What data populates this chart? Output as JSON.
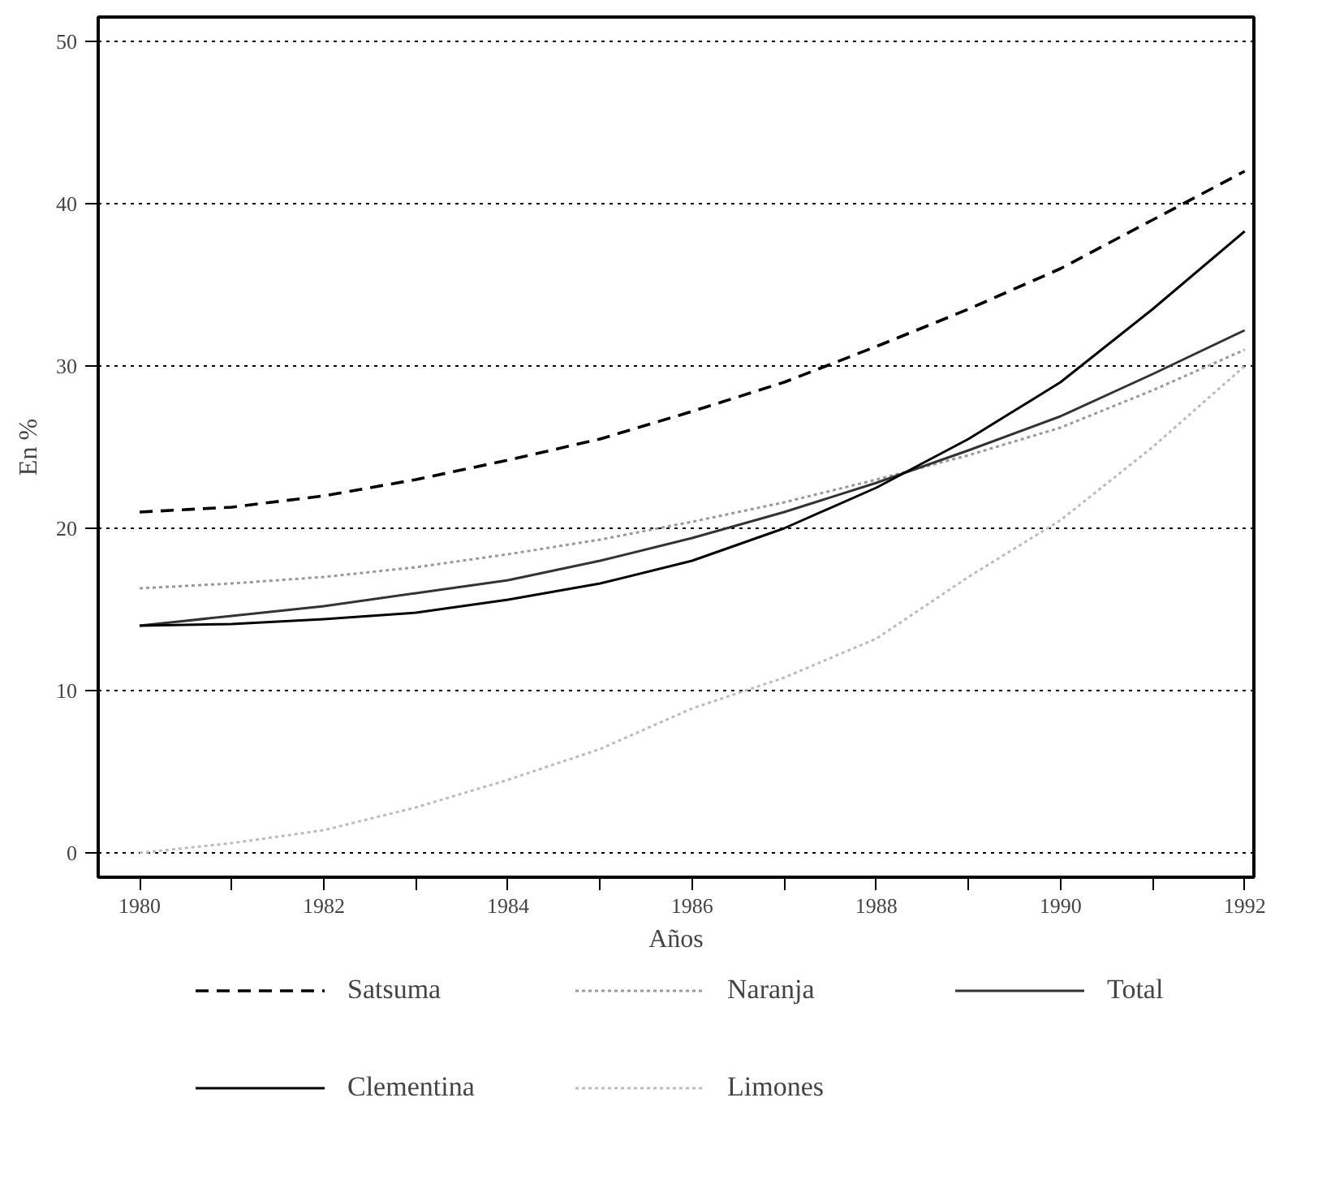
{
  "chart_data": {
    "type": "line",
    "xlabel": "Años",
    "ylabel": "En %",
    "x": [
      1980,
      1981,
      1982,
      1983,
      1984,
      1985,
      1986,
      1987,
      1988,
      1989,
      1990,
      1991,
      1992
    ],
    "xlim": [
      1979.55,
      1992.1
    ],
    "ylim": [
      -1.5,
      51.5
    ],
    "xticks": [
      1980,
      {
        "value": 1981,
        "label": null
      },
      1982,
      {
        "value": 1983,
        "label": null
      },
      1984,
      {
        "value": 1985,
        "label": null
      },
      1986,
      {
        "value": 1987,
        "label": null
      },
      1988,
      {
        "value": 1989,
        "label": null
      },
      1990,
      {
        "value": 1991,
        "label": null
      },
      1992
    ],
    "yticks": [
      0,
      10,
      20,
      30,
      40,
      50
    ],
    "grid": "y",
    "legend": "bottom",
    "series": [
      {
        "name": "Satsuma",
        "color": "#000000",
        "line_style": "dashed",
        "values": [
          21,
          21.3,
          22,
          23,
          24.2,
          25.5,
          27.2,
          29,
          31.2,
          33.5,
          36,
          39,
          42
        ]
      },
      {
        "name": "Naranja",
        "color": "#999999",
        "line_style": "dotted",
        "values": [
          16.3,
          16.6,
          17,
          17.6,
          18.4,
          19.3,
          20.4,
          21.6,
          23,
          24.5,
          26.2,
          28.5,
          31
        ]
      },
      {
        "name": "Total",
        "color": "#333333",
        "line_style": "solid",
        "values": [
          14,
          14.6,
          15.2,
          16,
          16.8,
          18,
          19.4,
          21,
          22.8,
          24.8,
          26.9,
          29.5,
          32.2
        ]
      },
      {
        "name": "Clementina",
        "color": "#000000",
        "line_style": "solid",
        "values": [
          14,
          14.1,
          14.4,
          14.8,
          15.6,
          16.6,
          18,
          20,
          22.5,
          25.5,
          29,
          33.5,
          38.3
        ]
      },
      {
        "name": "Limones",
        "color": "#bbbbbb",
        "line_style": "dotted",
        "values": [
          0,
          0.6,
          1.4,
          2.8,
          4.5,
          6.4,
          8.9,
          10.8,
          13.2,
          17,
          20.5,
          25,
          30
        ]
      }
    ]
  }
}
